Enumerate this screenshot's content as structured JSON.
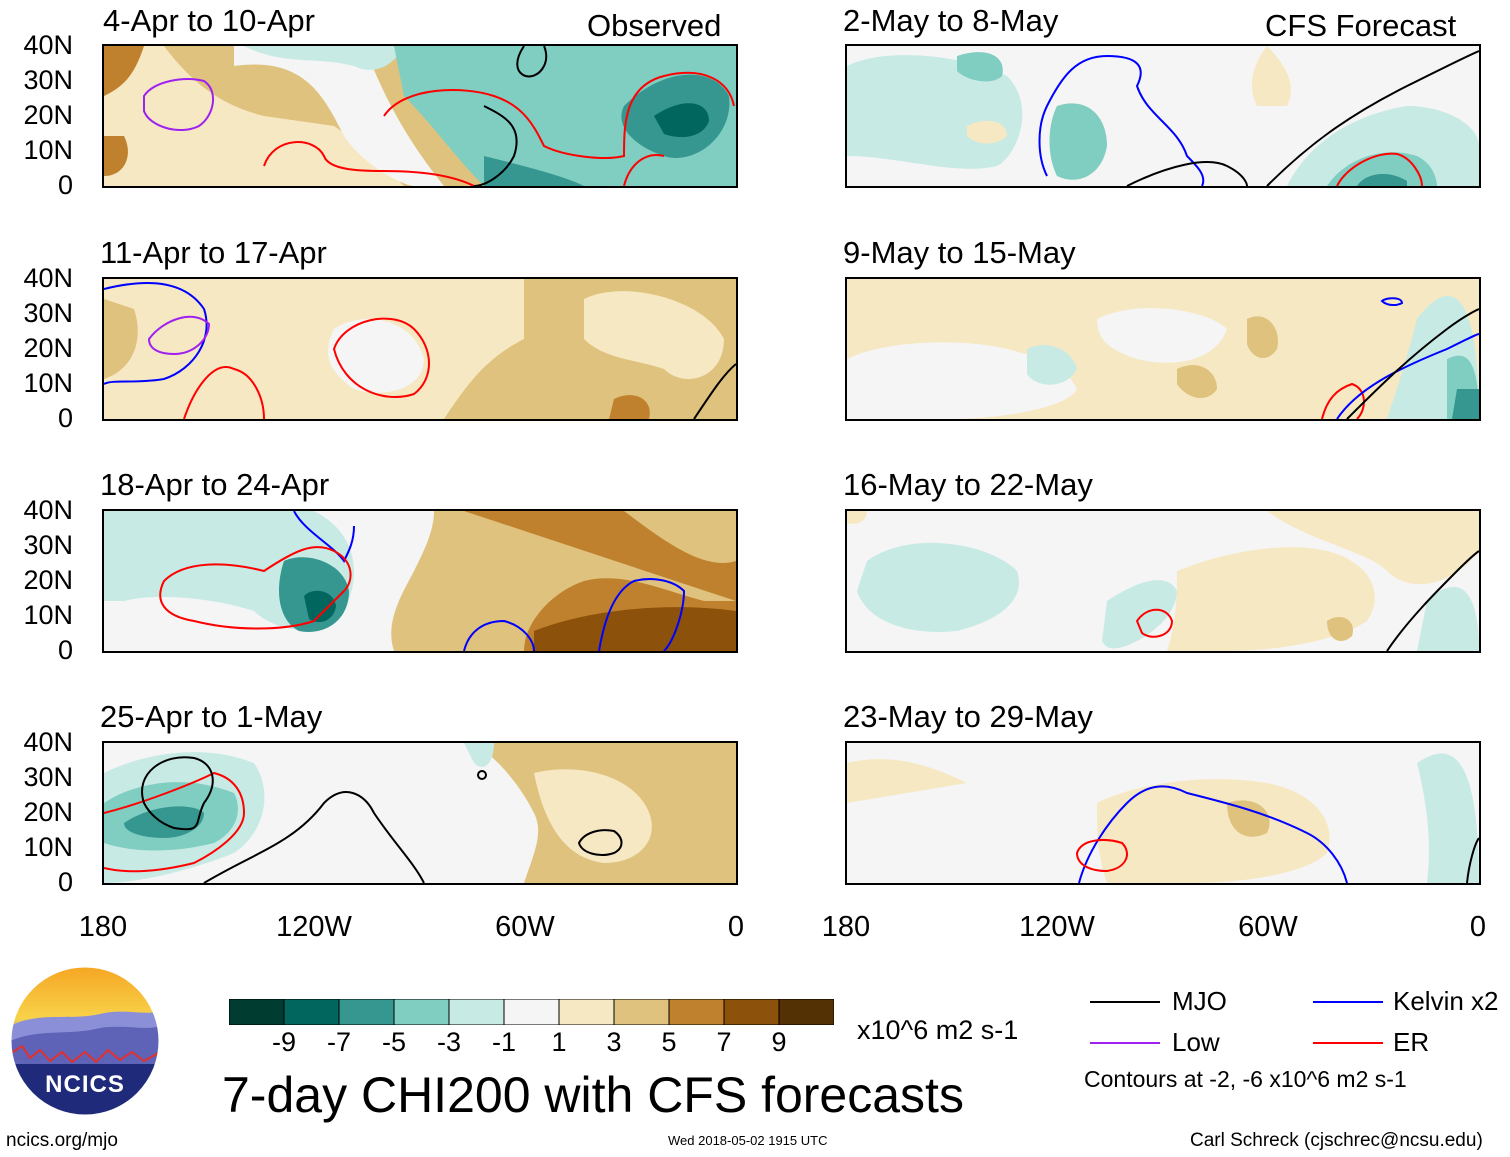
{
  "labels": {
    "observed": "Observed",
    "forecast": "CFS Forecast"
  },
  "latitudes": [
    "40N",
    "30N",
    "20N",
    "10N",
    "0"
  ],
  "longitudes": [
    "180",
    "120W",
    "60W",
    "0"
  ],
  "panels_left": [
    {
      "title": "4-Apr to 10-Apr"
    },
    {
      "title": "11-Apr to 17-Apr"
    },
    {
      "title": "18-Apr to 24-Apr"
    },
    {
      "title": "25-Apr to 1-May"
    }
  ],
  "panels_right": [
    {
      "title": "2-May to 8-May"
    },
    {
      "title": "9-May to 15-May"
    },
    {
      "title": "16-May to 22-May"
    },
    {
      "title": "23-May to 29-May"
    }
  ],
  "colorbar": {
    "colors": [
      "#013c30",
      "#01665e",
      "#35978f",
      "#80cdc1",
      "#c7eae5",
      "#f5f5f5",
      "#f6e8c3",
      "#dfc27d",
      "#bf812d",
      "#8c510a",
      "#543005"
    ],
    "tick_labels": [
      "-9",
      "-7",
      "-5",
      "-3",
      "-1",
      "1",
      "3",
      "5",
      "7",
      "9"
    ],
    "units": "x10^6 m2 s-1"
  },
  "legend": {
    "items": [
      {
        "label": "MJO",
        "color": "#000000"
      },
      {
        "label": "Kelvin x2",
        "color": "#0000ff"
      },
      {
        "label": "Low",
        "color": "#a020f0"
      },
      {
        "label": "ER",
        "color": "#ff0000"
      }
    ],
    "note": "Contours at -2, -6 x10^6 m2 s-1"
  },
  "logo": {
    "text": "NCICS"
  },
  "main_title": "7-day CHI200 with CFS forecasts",
  "footer": {
    "url": "ncics.org/mjo",
    "timestamp": "Wed 2018-05-02 1915 UTC",
    "credit": "Carl Schreck (cjschrec@ncsu.edu)"
  }
}
